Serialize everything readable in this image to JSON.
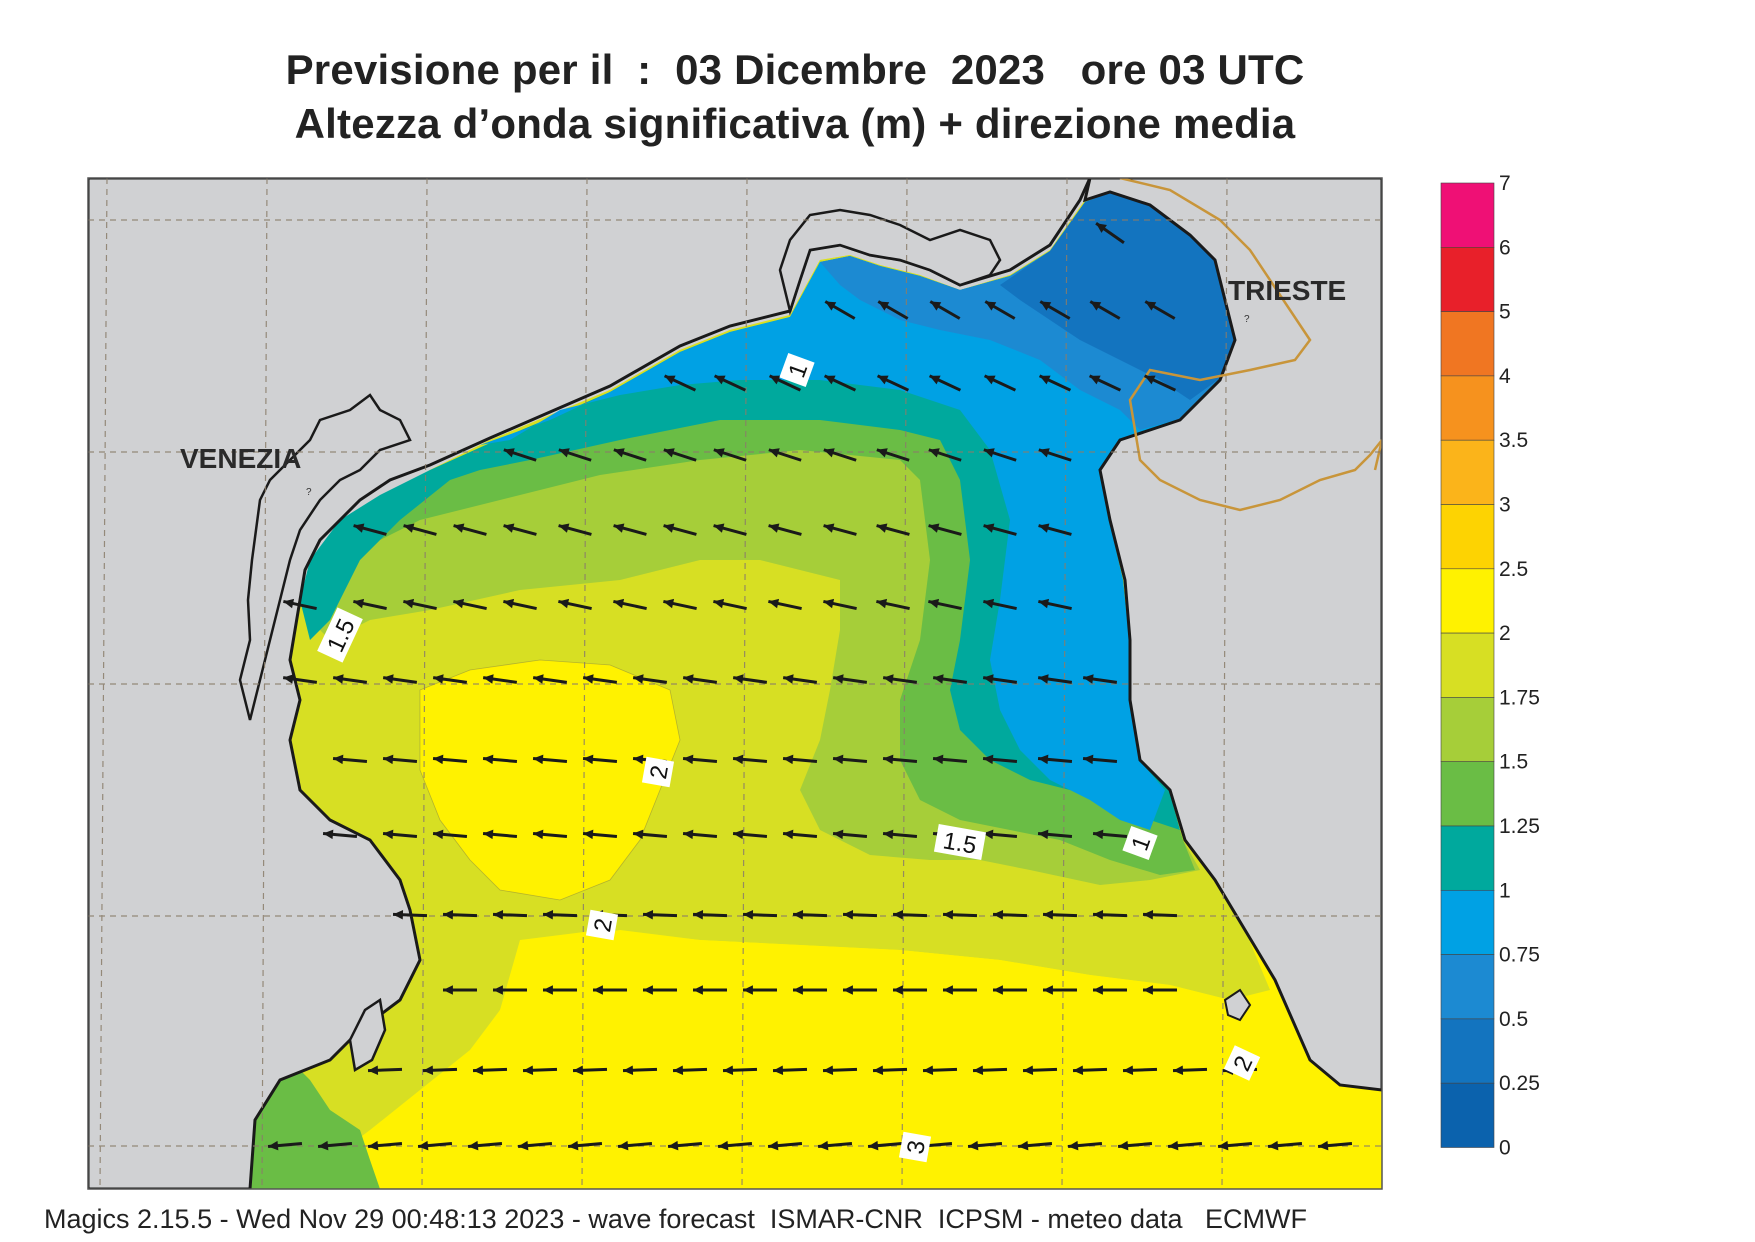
{
  "header": {
    "title_line1": "Previsione per il  :  03 Dicembre  2023   ore 03 UTC",
    "title_line2": "Altezza d’onda significativa (m) + direzione media"
  },
  "map": {
    "places": [
      "VENEZIA",
      "TRIESTE"
    ],
    "contour_labels": [
      "1",
      "1.5",
      "2",
      "2",
      "1.5",
      "1",
      "2",
      "3"
    ],
    "land_color": "#d0d1d3",
    "coast_color": "#1a1a1a",
    "border_color": "#c8953a",
    "arrow_color": "#1a1a1a"
  },
  "legend": {
    "levels": [
      "7",
      "6",
      "5",
      "4",
      "3.5",
      "3",
      "2.5",
      "2",
      "1.75",
      "1.5",
      "1.25",
      "1",
      "0.75",
      "0.5",
      "0.25",
      "0"
    ],
    "colors": [
      "#ef1075",
      "#e8202a",
      "#f07622",
      "#f6921e",
      "#fbb41a",
      "#fdd302",
      "#fff200",
      "#d7df23",
      "#a6ce39",
      "#6abd45",
      "#00a99d",
      "#00a1e4",
      "#1c8ad2",
      "#1374bf",
      "#0b62ad"
    ]
  },
  "footer": {
    "text": "Magics 2.15.5 - Wed Nov 29 00:48:13 2023 - wave forecast  ISMAR-CNR  ICPSM - meteo data   ECMWF"
  }
}
